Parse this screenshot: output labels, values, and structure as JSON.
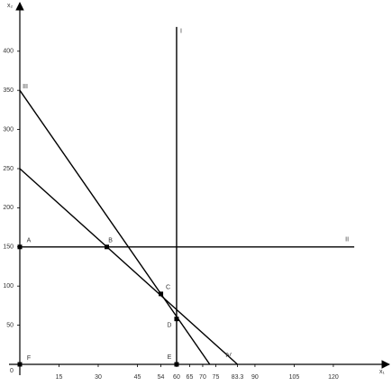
{
  "chart_data": {
    "type": "line",
    "x_label": "x₁",
    "y_label": "x₂",
    "xlim": [
      0,
      139
    ],
    "ylim": [
      0,
      460
    ],
    "xticks": [
      0,
      15,
      30,
      45,
      54,
      60,
      65,
      70,
      75,
      83.3,
      90,
      105,
      120
    ],
    "yticks": [
      50,
      100,
      150,
      200,
      250,
      300,
      350,
      400
    ],
    "series": [
      {
        "name": "I",
        "color": "#000000",
        "x": [
          60,
          60
        ],
        "values": [
          0,
          431
        ]
      },
      {
        "name": "II",
        "color": "#000000",
        "x": [
          0,
          128
        ],
        "values": [
          150,
          150
        ]
      },
      {
        "name": "III",
        "color": "#000000",
        "x": [
          0,
          72.7
        ],
        "values": [
          350,
          0
        ]
      },
      {
        "name": "IV",
        "color": "#000000",
        "x": [
          0,
          83.3
        ],
        "values": [
          250,
          0
        ]
      }
    ],
    "points": [
      {
        "label": "A",
        "x": 0,
        "y": 150
      },
      {
        "label": "B",
        "x": 33.3,
        "y": 150
      },
      {
        "label": "C",
        "x": 54,
        "y": 90
      },
      {
        "label": "D",
        "x": 60,
        "y": 58
      },
      {
        "label": "E",
        "x": 60,
        "y": 0
      },
      {
        "label": "F",
        "x": 0,
        "y": 0
      }
    ]
  }
}
